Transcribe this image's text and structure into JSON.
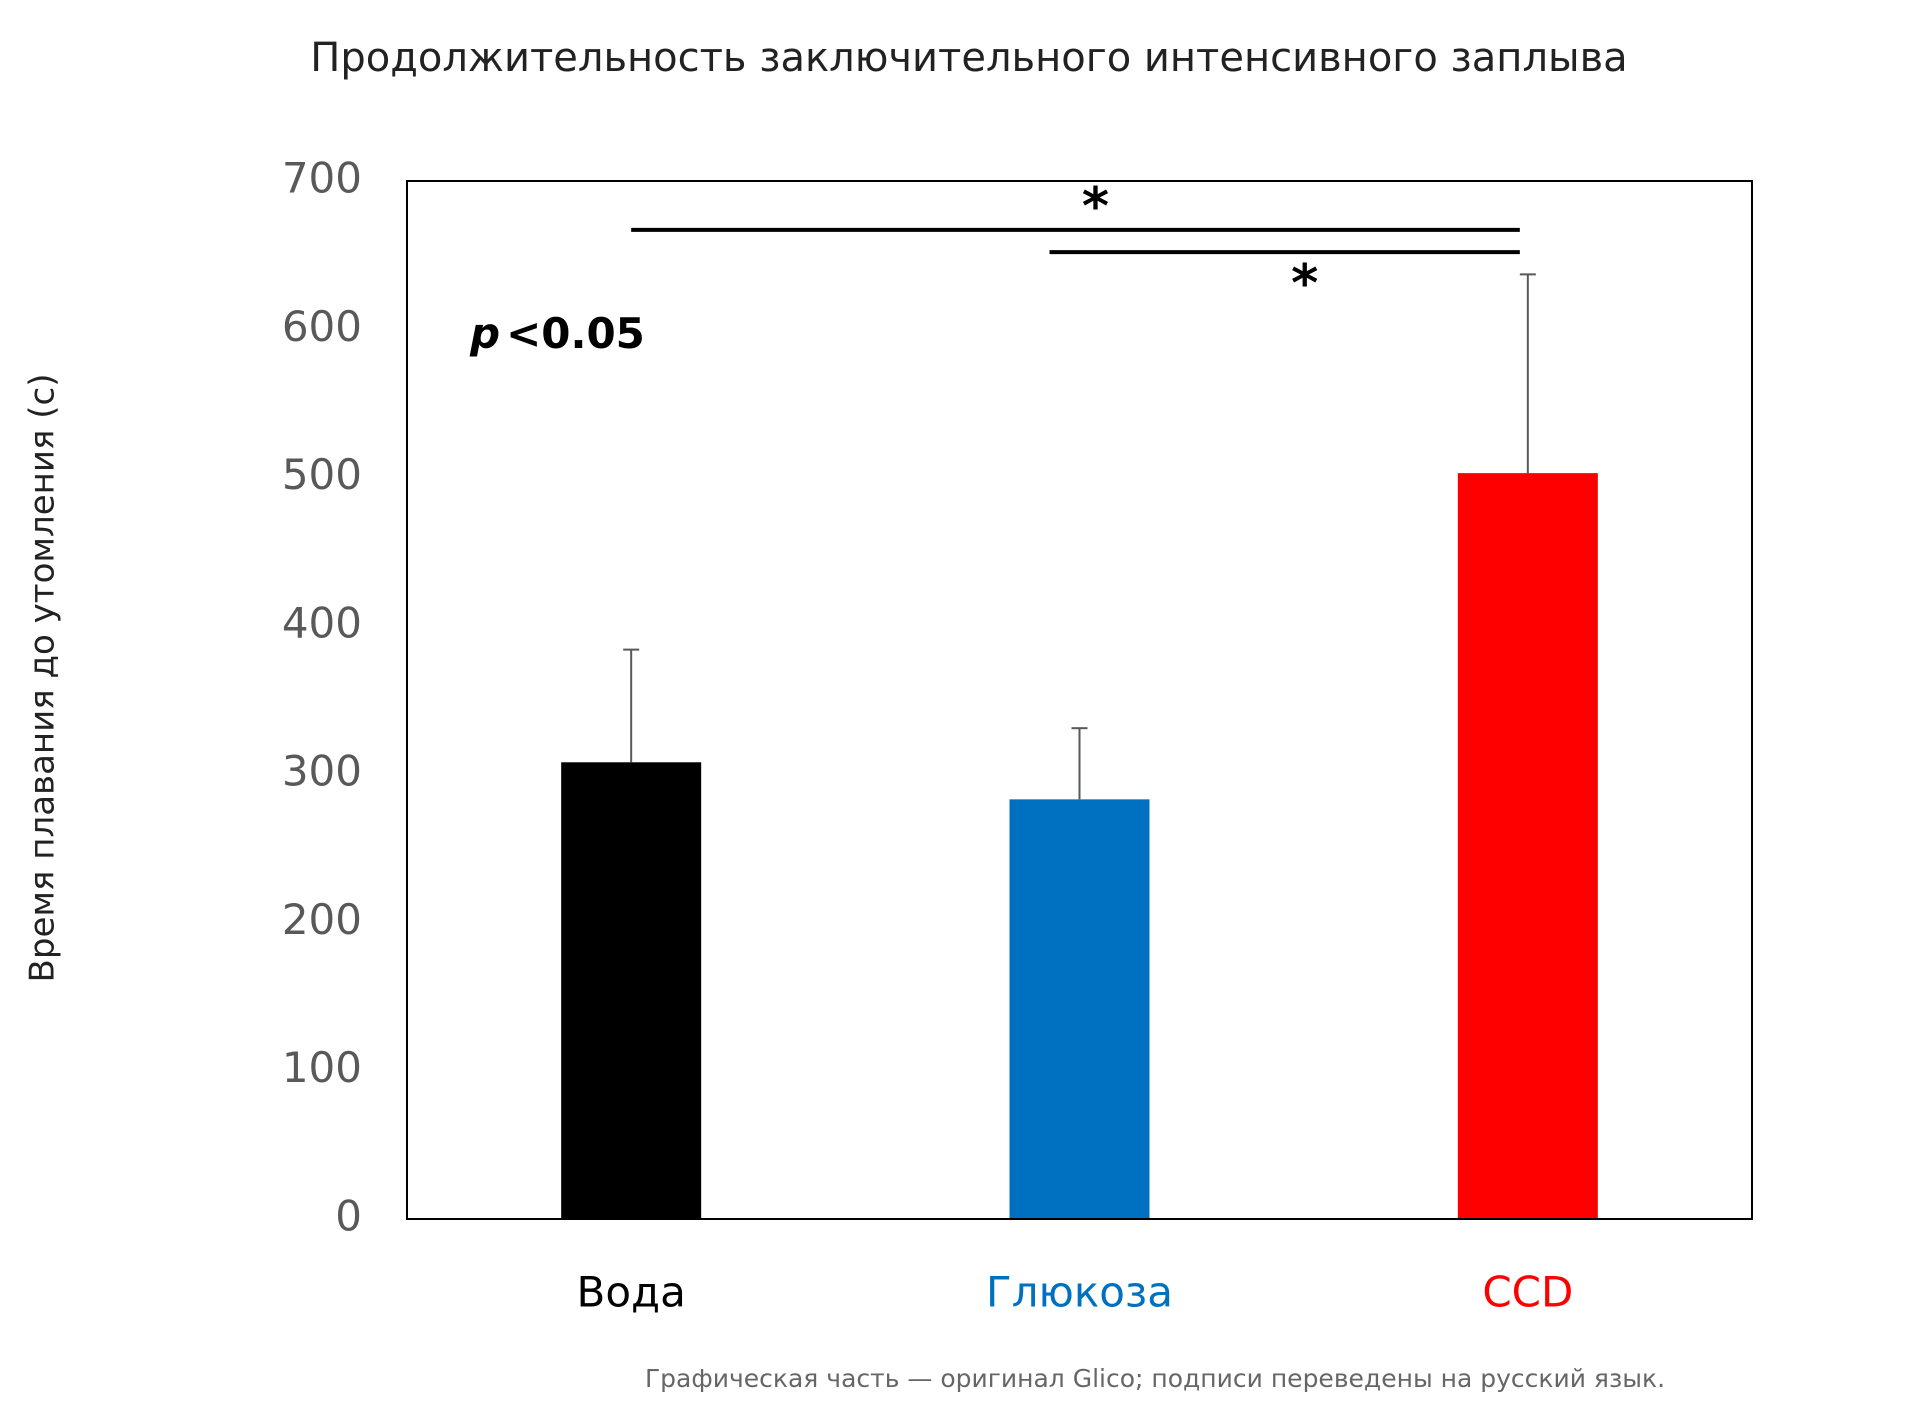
{
  "chart_data": {
    "type": "bar",
    "title": "Продолжительность заключительного интенсивного заплыва",
    "y_label": "Время плавания до утомления (с)",
    "categories": [
      "Вода",
      "Глюкоза",
      "CCD"
    ],
    "values": [
      308,
      283,
      503
    ],
    "errors": [
      76,
      48,
      134
    ],
    "colors": [
      "#000000",
      "#0070c0",
      "#ff0000"
    ],
    "ylim": [
      0,
      700
    ],
    "yticks": [
      0,
      100,
      200,
      300,
      400,
      500,
      600,
      700
    ],
    "significance": [
      {
        "from": 0,
        "to": 2,
        "y": 667,
        "label": "*"
      },
      {
        "from": 1,
        "to": 2,
        "y": 652,
        "label": "*"
      }
    ],
    "p_label": {
      "symbol": "p",
      "text": "<0.05"
    },
    "footnote": "Графическая часть — оригинал Glico; подписи переведены на русский язык."
  }
}
